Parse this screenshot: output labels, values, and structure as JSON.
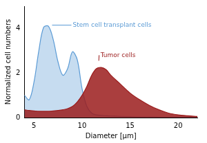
{
  "chart_data": {
    "type": "area",
    "x_label": "Diameter [µm]",
    "y_label": "Normalized cell numbers",
    "x": [
      4,
      4.5,
      5,
      5.5,
      6,
      6.5,
      7,
      7.5,
      8,
      8.5,
      9,
      9.5,
      10,
      10.5,
      11,
      11.5,
      12,
      12.5,
      13,
      14,
      15,
      16,
      17,
      18,
      19,
      20,
      21,
      22
    ],
    "series": [
      {
        "name": "Stem cell transplant cells",
        "color": "#5b9bd5",
        "values": [
          1.0,
          0.8,
          1.6,
          3.0,
          4.05,
          4.1,
          3.5,
          2.5,
          1.9,
          2.2,
          2.95,
          2.6,
          1.3,
          0.5,
          0.2,
          0.12,
          0.1,
          0.08,
          0.07,
          0.05,
          0.04,
          0.03,
          0.03,
          0.02,
          0.02,
          0.02,
          0.02,
          0.02
        ]
      },
      {
        "name": "Tumor cells",
        "color": "#9b1c1c",
        "values": [
          0.35,
          0.32,
          0.3,
          0.28,
          0.28,
          0.28,
          0.3,
          0.32,
          0.35,
          0.4,
          0.5,
          0.7,
          1.0,
          1.4,
          1.9,
          2.2,
          2.25,
          2.15,
          1.9,
          1.5,
          1.1,
          0.8,
          0.55,
          0.35,
          0.2,
          0.12,
          0.08,
          0.05
        ]
      }
    ],
    "xlim": [
      4,
      22
    ],
    "xticks": [
      5,
      10,
      15,
      20
    ],
    "ylim": [
      0,
      5
    ],
    "yticks": [
      0,
      2,
      4
    ],
    "grid": false
  }
}
